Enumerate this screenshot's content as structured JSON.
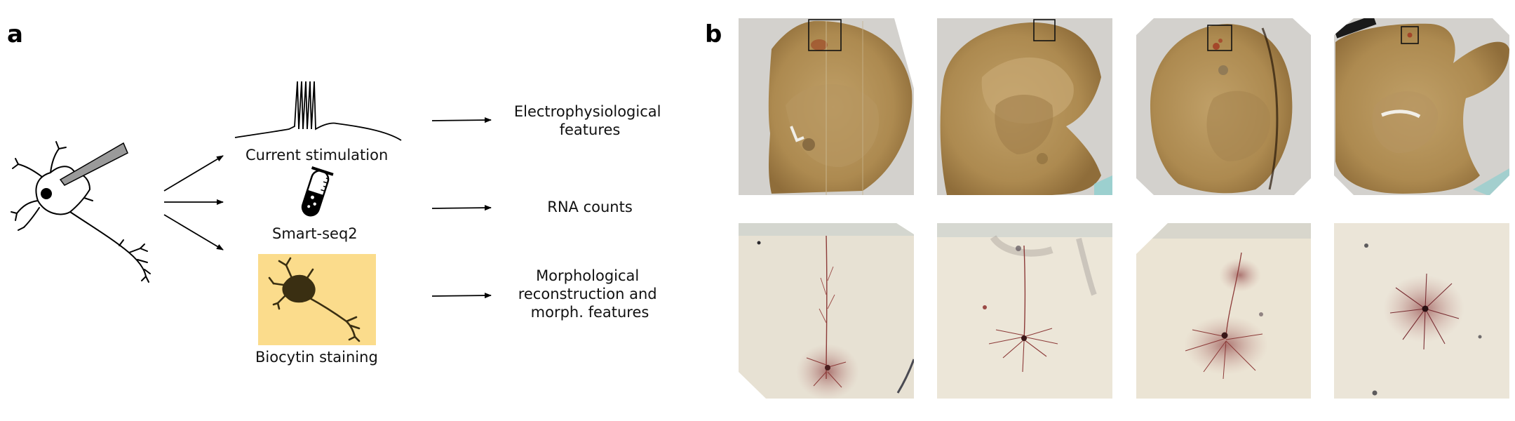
{
  "panel_a": {
    "letter": "a",
    "methods": [
      {
        "name": "current-stimulation",
        "label": "Current stimulation"
      },
      {
        "name": "smart-seq2",
        "label": "Smart-seq2"
      },
      {
        "name": "biocytin-staining",
        "label": "Biocytin staining"
      }
    ],
    "outputs": [
      {
        "name": "electrophysiological-features",
        "lines": [
          "Electrophysiological",
          "features"
        ]
      },
      {
        "name": "rna-counts",
        "lines": [
          "RNA counts"
        ]
      },
      {
        "name": "morphological-features",
        "lines": [
          "Morphological",
          "reconstruction and",
          "morph. features"
        ]
      }
    ],
    "icons": [
      "neuron-with-pipette-icon",
      "voltage-trace-icon",
      "test-tube-icon",
      "stained-neuron-icon"
    ],
    "colors": {
      "staining_box": "#fbdc8c",
      "stained_neuron": "#3a2f12"
    }
  },
  "panel_b": {
    "letter": "b",
    "slice_images": 4,
    "closeup_images": 4,
    "colors": {
      "tissue": "#b08f55",
      "background": "#d1cfcb",
      "closeup_bg": "#e6e0d2",
      "cell": "#7a2e33"
    }
  }
}
